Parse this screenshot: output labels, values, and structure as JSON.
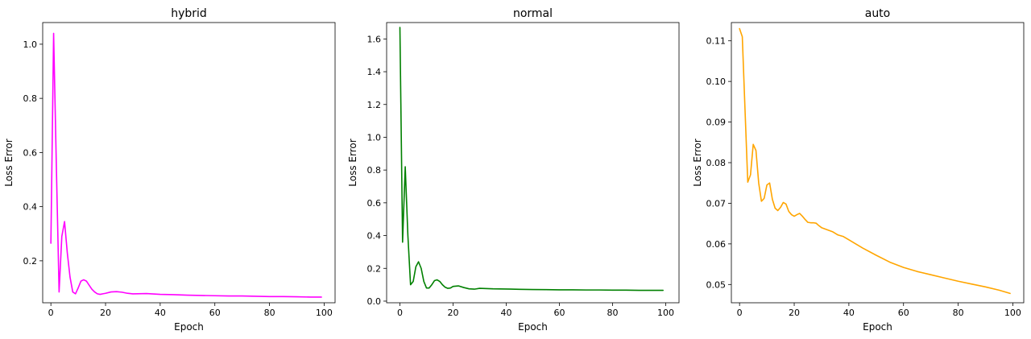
{
  "chart_data": [
    {
      "type": "line",
      "title": "hybrid",
      "xlabel": "Epoch",
      "ylabel": "Loss Error",
      "xlim": [
        -3,
        104
      ],
      "ylim": [
        0.045,
        1.08
      ],
      "xticks": [
        0,
        20,
        40,
        60,
        80,
        100
      ],
      "yticks": [
        0.2,
        0.4,
        0.6,
        0.8,
        1.0
      ],
      "ytick_format": 1,
      "grid": false,
      "color": "#ff00ff",
      "series": [
        {
          "x": [
            0,
            1,
            2,
            3,
            4,
            5,
            6,
            7,
            8,
            9,
            10,
            11,
            12,
            13,
            14,
            15,
            16,
            17,
            18,
            19,
            20,
            22,
            24,
            26,
            28,
            30,
            35,
            40,
            45,
            50,
            55,
            60,
            65,
            70,
            75,
            80,
            85,
            90,
            95,
            99
          ],
          "values": [
            0.265,
            1.04,
            0.55,
            0.085,
            0.29,
            0.345,
            0.23,
            0.14,
            0.085,
            0.078,
            0.1,
            0.125,
            0.13,
            0.125,
            0.11,
            0.095,
            0.085,
            0.078,
            0.076,
            0.078,
            0.08,
            0.085,
            0.086,
            0.084,
            0.08,
            0.078,
            0.079,
            0.076,
            0.075,
            0.073,
            0.072,
            0.071,
            0.07,
            0.07,
            0.069,
            0.068,
            0.068,
            0.067,
            0.066,
            0.066
          ]
        }
      ]
    },
    {
      "type": "line",
      "title": "normal",
      "xlabel": "Epoch",
      "ylabel": "Loss Error",
      "xlim": [
        -5,
        105
      ],
      "ylim": [
        -0.01,
        1.7
      ],
      "xticks": [
        0,
        20,
        40,
        60,
        80,
        100
      ],
      "yticks": [
        0.0,
        0.2,
        0.4,
        0.6,
        0.8,
        1.0,
        1.2,
        1.4,
        1.6
      ],
      "ytick_format": 1,
      "grid": false,
      "color": "#008000",
      "series": [
        {
          "x": [
            0,
            1,
            2,
            3,
            4,
            5,
            6,
            7,
            8,
            9,
            10,
            11,
            12,
            13,
            14,
            15,
            16,
            17,
            18,
            19,
            20,
            22,
            24,
            26,
            28,
            30,
            35,
            40,
            45,
            50,
            55,
            60,
            65,
            70,
            75,
            80,
            85,
            90,
            95,
            99
          ],
          "values": [
            1.67,
            0.36,
            0.82,
            0.4,
            0.1,
            0.12,
            0.21,
            0.24,
            0.2,
            0.12,
            0.08,
            0.08,
            0.1,
            0.125,
            0.13,
            0.12,
            0.1,
            0.085,
            0.078,
            0.08,
            0.09,
            0.093,
            0.083,
            0.075,
            0.073,
            0.078,
            0.075,
            0.074,
            0.072,
            0.071,
            0.07,
            0.069,
            0.069,
            0.068,
            0.068,
            0.067,
            0.067,
            0.066,
            0.066,
            0.066
          ]
        }
      ]
    },
    {
      "type": "line",
      "title": "auto",
      "xlabel": "Epoch",
      "ylabel": "Loss Error",
      "xlim": [
        -3,
        104
      ],
      "ylim": [
        0.0455,
        0.1145
      ],
      "xticks": [
        0,
        20,
        40,
        60,
        80,
        100
      ],
      "yticks": [
        0.05,
        0.06,
        0.07,
        0.08,
        0.09,
        0.1,
        0.11
      ],
      "ytick_format": 2,
      "grid": false,
      "color": "#ffa500",
      "series": [
        {
          "x": [
            0,
            1,
            2,
            3,
            4,
            5,
            6,
            7,
            8,
            9,
            10,
            11,
            12,
            13,
            14,
            15,
            16,
            17,
            18,
            19,
            20,
            21,
            22,
            23,
            24,
            25,
            26,
            27,
            28,
            29,
            30,
            32,
            34,
            36,
            38,
            40,
            45,
            50,
            55,
            60,
            65,
            70,
            75,
            80,
            85,
            90,
            95,
            99
          ],
          "values": [
            0.113,
            0.111,
            0.093,
            0.0752,
            0.077,
            0.0845,
            0.083,
            0.075,
            0.0705,
            0.0712,
            0.0745,
            0.075,
            0.071,
            0.0688,
            0.0682,
            0.069,
            0.0702,
            0.0698,
            0.068,
            0.0672,
            0.0668,
            0.0672,
            0.0675,
            0.0668,
            0.066,
            0.0653,
            0.0652,
            0.0652,
            0.0651,
            0.0645,
            0.064,
            0.0635,
            0.063,
            0.0622,
            0.0618,
            0.061,
            0.059,
            0.0572,
            0.0555,
            0.0542,
            0.0532,
            0.0524,
            0.0516,
            0.0508,
            0.0501,
            0.0494,
            0.0486,
            0.0478
          ]
        }
      ]
    }
  ]
}
